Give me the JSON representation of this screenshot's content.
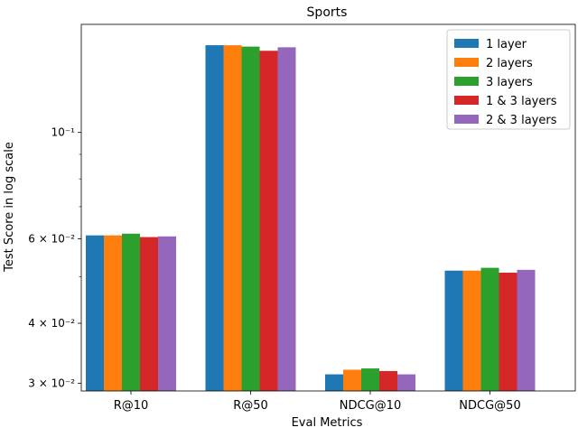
{
  "chart_data": {
    "type": "bar",
    "title": "Sports",
    "xlabel": "Eval Metrics",
    "ylabel": "Test Score in log scale",
    "yscale": "log",
    "ylim": [
      0.0289,
      0.168
    ],
    "grid": false,
    "legend_position": "top-right",
    "categories": [
      "R@10",
      "R@50",
      "NDCG@10",
      "NDCG@50"
    ],
    "series": [
      {
        "name": "1 layer",
        "color": "#1f77b4",
        "values": [
          0.061,
          0.152,
          0.0313,
          0.0515
        ]
      },
      {
        "name": "2 layers",
        "color": "#ff7f0e",
        "values": [
          0.061,
          0.152,
          0.032,
          0.0515
        ]
      },
      {
        "name": "3 layers",
        "color": "#2ca02c",
        "values": [
          0.0615,
          0.151,
          0.0322,
          0.0522
        ]
      },
      {
        "name": "1 & 3 layers",
        "color": "#d62728",
        "values": [
          0.0605,
          0.148,
          0.0318,
          0.051
        ]
      },
      {
        "name": "2 & 3 layers",
        "color": "#9467bd",
        "values": [
          0.0607,
          0.1505,
          0.0313,
          0.0517
        ]
      }
    ],
    "major_ticks": [
      {
        "value": 0.03,
        "label": "3 × 10⁻²"
      },
      {
        "value": 0.04,
        "label": "4 × 10⁻²"
      },
      {
        "value": 0.06,
        "label": "6 × 10⁻²"
      },
      {
        "value": 0.1,
        "label": "10⁻¹"
      }
    ],
    "minor_ticks": [
      0.05,
      0.07,
      0.08,
      0.09
    ]
  }
}
